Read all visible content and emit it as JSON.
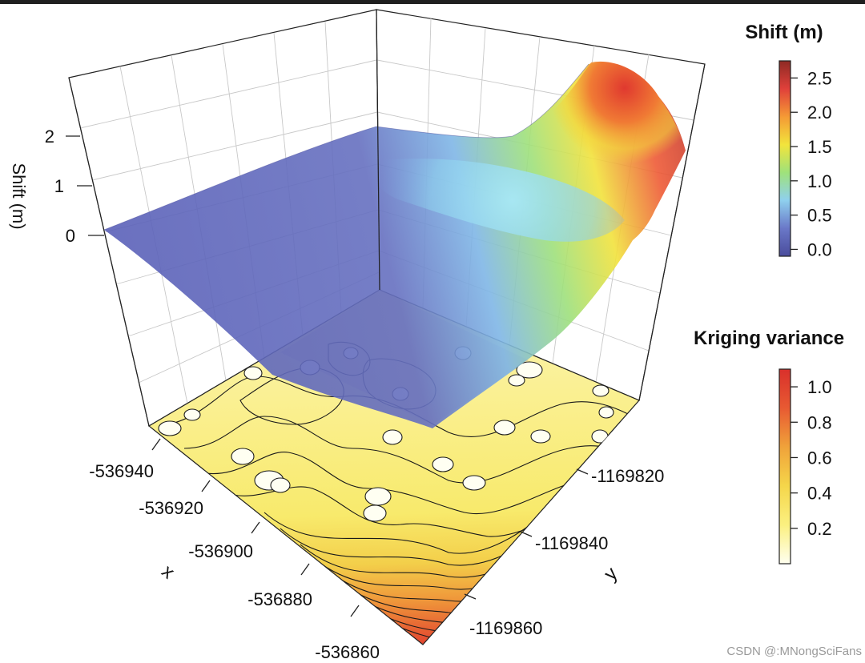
{
  "chart_data": {
    "type": "surface3d",
    "zlabel": "Shift (m)",
    "xlabel": "x",
    "ylabel": "y",
    "z_ticks": [
      "0",
      "1",
      "2"
    ],
    "x_ticks": [
      "-536940",
      "-536920",
      "-536900",
      "-536880",
      "-536860"
    ],
    "y_ticks": [
      "-1169820",
      "-1169840",
      "-1169860"
    ],
    "shift_legend": {
      "title": "Shift (m)",
      "ticks": [
        "2.5",
        "2.0",
        "1.5",
        "1.0",
        "0.5",
        "0.0"
      ],
      "range": [
        -0.1,
        2.75
      ],
      "colors": [
        "#4a4c9c",
        "#6a78c8",
        "#8fd0ee",
        "#9fe27a",
        "#f2e43c",
        "#f59a35",
        "#e0403a",
        "#8e2a24"
      ]
    },
    "variance_legend": {
      "title": "Kriging variance",
      "ticks": [
        "1.0",
        "0.8",
        "0.6",
        "0.4",
        "0.2"
      ],
      "range": [
        0,
        1.1
      ],
      "colors": [
        "#fffff0",
        "#fbf080",
        "#f5d64a",
        "#f0a23a",
        "#e85a32",
        "#d9302b"
      ]
    },
    "surface_note": "Shift surface near 0 m over most of the domain, rising to ~2.7 m at the far y corner",
    "contour_note": "Kriging variance contours on the floor, low (<0.2) near sample sites, rising to ~1.0 at the -536860 corner"
  },
  "watermark": "CSDN @:MNongSciFans"
}
